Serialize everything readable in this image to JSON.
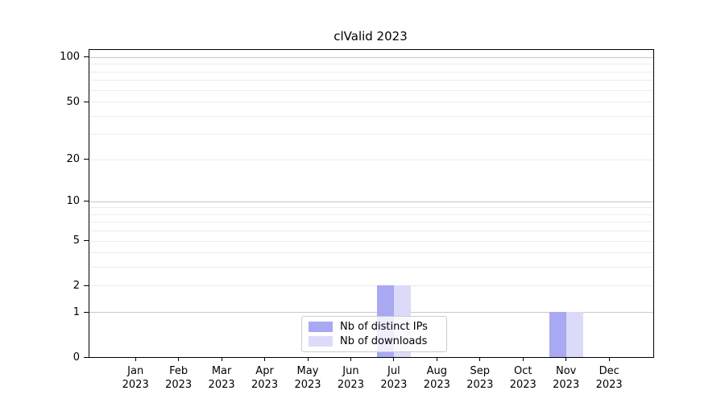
{
  "chart_data": {
    "type": "bar",
    "title": "clValid 2023",
    "categories": [
      "Jan 2023",
      "Feb 2023",
      "Mar 2023",
      "Apr 2023",
      "May 2023",
      "Jun 2023",
      "Jul 2023",
      "Aug 2023",
      "Sep 2023",
      "Oct 2023",
      "Nov 2023",
      "Dec 2023"
    ],
    "series": [
      {
        "name": "Nb of distinct IPs",
        "color": "#a8a8f3",
        "values": [
          0,
          0,
          0,
          0,
          0,
          0,
          2,
          0,
          0,
          0,
          1,
          0
        ]
      },
      {
        "name": "Nb of downloads",
        "color": "#dbdbf9",
        "values": [
          0,
          0,
          0,
          0,
          0,
          0,
          2,
          0,
          0,
          0,
          1,
          0
        ]
      }
    ],
    "xlabel": "",
    "ylabel": "",
    "scale": "log1p",
    "ylim": [
      0,
      113
    ],
    "yticks": [
      0,
      1,
      2,
      5,
      10,
      20,
      50,
      100
    ],
    "grid": {
      "major_lines": [
        1,
        10,
        100
      ],
      "minor_lines": [
        2,
        3,
        4,
        5,
        6,
        7,
        8,
        9,
        20,
        30,
        40,
        50,
        60,
        70,
        80,
        90
      ],
      "major_color": "#c8c8c8",
      "minor_color": "#ececec"
    },
    "legend_position": "bottom-center",
    "colors": {
      "spine": "#000000",
      "background": "#ffffff"
    }
  }
}
